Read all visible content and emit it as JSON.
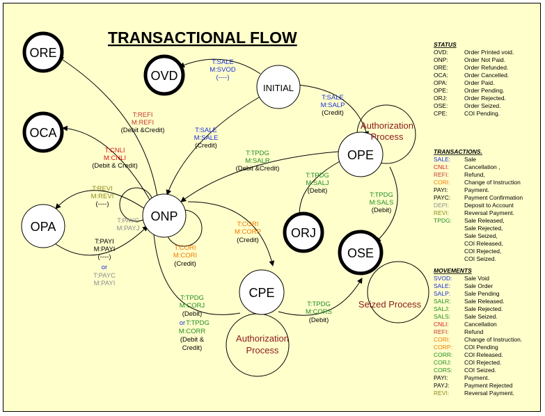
{
  "title": "TRANSACTIONAL FLOW",
  "colors": {
    "sale": "#1a2fd6",
    "cancel": "#d61a1a",
    "refund": "#c0392b",
    "cori": "#f07800",
    "payment": "#000000",
    "green": "#218c21",
    "grey": "#8c8c8c",
    "olive": "#8a8a1a",
    "process": "#8b1a1a"
  },
  "nodes": {
    "ore": "ORE",
    "ovd": "OVD",
    "initial": "INITIAL",
    "oca": "OCA",
    "ope": "OPE",
    "opa": "OPA",
    "onp": "ONP",
    "orj": "ORJ",
    "ose": "OSE",
    "cpe": "CPE"
  },
  "processes": {
    "ope_auth": [
      "Authorization",
      "Process"
    ],
    "cpe_auth": [
      "Authorization",
      "Process"
    ],
    "seized": "Seized Process"
  },
  "edges": {
    "initial_ovd": [
      "T:SALE",
      "M:SVOD",
      "(----)"
    ],
    "initial_ope": [
      "T:SALE",
      "M:SALP",
      "(Credit)"
    ],
    "onp_ore": [
      "T:REFI",
      "M:REFI",
      "(Debit &Credit)"
    ],
    "onp_oca": [
      "T:CNLI",
      "M:CNLI",
      "(Debit & Credit)"
    ],
    "initial_onp": [
      "T:SALE",
      "M:SALE",
      "(Credit)"
    ],
    "ope_onp": [
      "T:TPDG",
      "M:SALR",
      "(Debit &Credit)"
    ],
    "ope_orj": [
      "T:TPDG",
      "M:SALJ",
      "(Debit)"
    ],
    "ope_ose": [
      "T:TPDG",
      "M:SALS",
      "(Debit)"
    ],
    "onp_opa": [
      "T:REVI",
      "M:REVI",
      "(----)"
    ],
    "onp_self_payc": [
      "T:PAYC",
      "M:PAYJ"
    ],
    "opa_onp": [
      "T:PAYI",
      "M:PAYI",
      "(----)"
    ],
    "or1": "or",
    "opa_onp_payc": [
      "T:PAYC",
      "M:PAYI"
    ],
    "onp_self_cori": [
      "T:CORI",
      "M:CORI",
      "(Credit)"
    ],
    "onp_cpe": [
      "T:CORI",
      "M:CORP",
      "(Credit)"
    ],
    "cpe_onp_1": [
      "T:TPDG",
      "M:CORJ",
      "(Debit)"
    ],
    "or2": "or",
    "cpe_onp_2": [
      "T:TPDG",
      "M:CORR",
      "(Debit &",
      "Credit)"
    ],
    "cpe_ose": [
      "T:TPDG",
      "M:CORS",
      "(Debit)"
    ]
  },
  "legend": {
    "status": {
      "heading": "STATUS",
      "rows": [
        {
          "code": "OVD:",
          "desc": "Order Printed void."
        },
        {
          "code": "ONP:",
          "desc": "Order Not Paid."
        },
        {
          "code": "ORE:",
          "desc": "Order Refunded."
        },
        {
          "code": "OCA:",
          "desc": "Order Cancelled."
        },
        {
          "code": "OPA:",
          "desc": "Order Paid."
        },
        {
          "code": "OPE:",
          "desc": "Order Pending."
        },
        {
          "code": "ORJ:",
          "desc": "Order Rejected."
        },
        {
          "code": "OSE:",
          "desc": "Order Seized."
        },
        {
          "code": "CPE:",
          "desc": "COI Pending."
        }
      ]
    },
    "transactions": {
      "heading": "TRANSACTIONS.",
      "rows": [
        {
          "code": "SALE:",
          "desc": "Sale",
          "color": "#1a2fd6"
        },
        {
          "code": "CNLI:",
          "desc": "Cancellation ,",
          "color": "#d61a1a"
        },
        {
          "code": "REFI:",
          "desc": "Refund,",
          "color": "#c0392b"
        },
        {
          "code": "CORI:",
          "desc": "Change  of Instruction",
          "color": "#f07800"
        },
        {
          "code": "PAYI:",
          "desc": "Payment.",
          "color": "#000000"
        },
        {
          "code": "PAYC:",
          "desc": "Payment Confirmation",
          "color": "#000000"
        },
        {
          "code": "DEPI:",
          "desc": "Deposit to Account",
          "color": "#8c8c8c"
        },
        {
          "code": "REVI:",
          "desc": "Reversal Payment.",
          "color": "#8a8a1a"
        },
        {
          "code": "TPDG:",
          "desc": "Sale Released,",
          "color": "#218c21"
        },
        {
          "code": "",
          "desc": "Sale Rejected,",
          "color": "#218c21"
        },
        {
          "code": "",
          "desc": "Sale Seized,",
          "color": "#218c21"
        },
        {
          "code": "",
          "desc": "COI Released,",
          "color": "#218c21"
        },
        {
          "code": "",
          "desc": "COI Rejected,",
          "color": "#218c21"
        },
        {
          "code": "",
          "desc": "COI Seized.",
          "color": "#218c21"
        }
      ]
    },
    "movements": {
      "heading": "MOVEMENTS",
      "rows": [
        {
          "code": "SVOD:",
          "desc": "Sale Void",
          "color": "#1a2fd6"
        },
        {
          "code": "SALE:",
          "desc": "Sale Order",
          "color": "#1a2fd6"
        },
        {
          "code": "SALP:",
          "desc": "Sale Pending",
          "color": "#1a2fd6"
        },
        {
          "code": "SALR:",
          "desc": "Sale Released.",
          "color": "#218c21"
        },
        {
          "code": "SALJ:",
          "desc": "Sale Rejected.",
          "color": "#218c21"
        },
        {
          "code": "SALS:",
          "desc": "Sale Seized.",
          "color": "#218c21"
        },
        {
          "code": "CNLI:",
          "desc": "Cancellation",
          "color": "#d61a1a"
        },
        {
          "code": "REFI:",
          "desc": "Refund",
          "color": "#c0392b"
        },
        {
          "code": "CORI:",
          "desc": "Change of Instruction.",
          "color": "#f07800"
        },
        {
          "code": "CORP:",
          "desc": "COI Pending",
          "color": "#f07800"
        },
        {
          "code": "CORR:",
          "desc": "COI Released.",
          "color": "#218c21"
        },
        {
          "code": "CORJ:",
          "desc": "COI Rejected.",
          "color": "#218c21"
        },
        {
          "code": "CORS:",
          "desc": "COI Seized.",
          "color": "#218c21"
        },
        {
          "code": "PAYI:",
          "desc": "Payment.",
          "color": "#000000"
        },
        {
          "code": "PAYJ:",
          "desc": "Payment Rejected",
          "color": "#000000"
        },
        {
          "code": "REVI:",
          "desc": "Reversal Payment.",
          "color": "#8a8a1a"
        }
      ]
    }
  }
}
